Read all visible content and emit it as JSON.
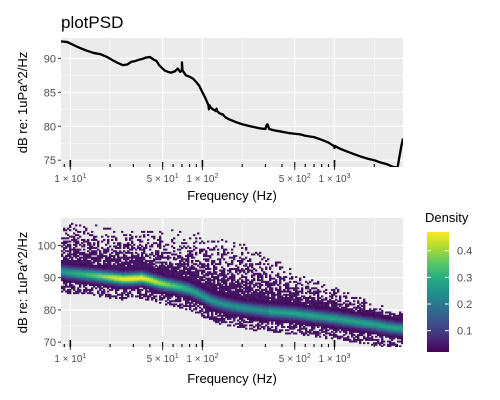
{
  "chart_data": [
    {
      "type": "line",
      "title": "plotPSD",
      "xlabel": "Frequency (Hz)",
      "ylabel": "dB re: 1uPa^2/Hz",
      "x_scale": "log10",
      "xlim": [
        8.5,
        3300
      ],
      "ylim": [
        74,
        93
      ],
      "x_ticks": [
        10,
        50,
        100,
        500,
        1000
      ],
      "x_tick_labels": [
        {
          "base": "1 × 10",
          "exp": "1"
        },
        {
          "base": "5 × 10",
          "exp": "1"
        },
        {
          "base": "1 × 10",
          "exp": "2"
        },
        {
          "base": "5 × 10",
          "exp": "2"
        },
        {
          "base": "1 × 10",
          "exp": "3"
        }
      ],
      "y_ticks": [
        75,
        80,
        85,
        90
      ],
      "grid": true,
      "series": [
        {
          "color": "#000000",
          "x": [
            8.5,
            9.5,
            11,
            13,
            15,
            17,
            19,
            21,
            23,
            25,
            27,
            29,
            31,
            33,
            35,
            37,
            40,
            43,
            45,
            47,
            50,
            52,
            55,
            58,
            62,
            65,
            68,
            70,
            72,
            75,
            80,
            85,
            90,
            95,
            100,
            105,
            110,
            115,
            120,
            125,
            130,
            135,
            140,
            145,
            150,
            160,
            170,
            180,
            200,
            230,
            270,
            300,
            310,
            320,
            350,
            400,
            450,
            500,
            550,
            600,
            700,
            800,
            900,
            950,
            1000,
            1050,
            1100,
            1200,
            1400,
            1600,
            1800,
            2000,
            2200,
            2500,
            2800,
            3000,
            3100,
            3200,
            3300
          ],
          "y": [
            92.5,
            92.4,
            91.8,
            91.2,
            90.8,
            90.6,
            90.2,
            89.7,
            89.3,
            89.0,
            89.1,
            89.5,
            89.6,
            89.8,
            89.9,
            90.1,
            90.2,
            89.8,
            89.6,
            89.0,
            88.5,
            88.2,
            88.0,
            87.9,
            88.1,
            88.5,
            88.0,
            88.2,
            88.0,
            87.5,
            87.3,
            87.0,
            86.5,
            85.9,
            85.0,
            84.2,
            83.3,
            82.8,
            82.5,
            82.3,
            82.2,
            81.9,
            81.8,
            81.6,
            81.3,
            81.0,
            80.8,
            80.6,
            80.3,
            80.0,
            79.7,
            79.6,
            80.2,
            79.6,
            79.4,
            79.2,
            79.0,
            78.9,
            78.8,
            78.6,
            78.4,
            78.0,
            77.6,
            77.3,
            77.1,
            76.9,
            76.7,
            76.4,
            75.9,
            75.5,
            75.2,
            75.0,
            74.7,
            74.4,
            74.0,
            73.9,
            75.5,
            77.0,
            78.2
          ]
        }
      ],
      "spikes": [
        {
          "x": 70,
          "peak": 89.4
        },
        {
          "x": 112,
          "peak": 82.5
        },
        {
          "x": 128,
          "peak": 82.6
        },
        {
          "x": 142,
          "peak": 81.8
        },
        {
          "x": 310,
          "peak": 80.3
        },
        {
          "x": 1000,
          "peak": 76.8
        }
      ]
    },
    {
      "type": "heatmap",
      "xlabel": "Frequency (Hz)",
      "ylabel": "dB re: 1uPa^2/Hz",
      "x_scale": "log10",
      "xlim": [
        8.5,
        3300
      ],
      "ylim": [
        68.5,
        108.5
      ],
      "x_ticks": [
        10,
        50,
        100,
        500,
        1000
      ],
      "x_tick_labels": [
        {
          "base": "1 × 10",
          "exp": "1"
        },
        {
          "base": "5 × 10",
          "exp": "1"
        },
        {
          "base": "1 × 10",
          "exp": "2"
        },
        {
          "base": "5 × 10",
          "exp": "2"
        },
        {
          "base": "1 × 10",
          "exp": "3"
        }
      ],
      "y_ticks": [
        70,
        80,
        90,
        100
      ],
      "grid": true,
      "legend": {
        "title": "Density",
        "position": "right",
        "range": [
          0.02,
          0.47
        ],
        "ticks": [
          0.1,
          0.2,
          0.3,
          0.4
        ],
        "colormap": "viridis"
      },
      "ridge": {
        "x": [
          8.5,
          10,
          15,
          20,
          25,
          30,
          35,
          40,
          50,
          60,
          70,
          80,
          100,
          120,
          150,
          200,
          300,
          500,
          700,
          1000,
          1500,
          2000,
          2500,
          3300
        ],
        "y": [
          92.0,
          91.6,
          90.8,
          90.2,
          89.7,
          89.8,
          90.0,
          89.4,
          88.2,
          87.6,
          87.0,
          86.4,
          84.5,
          82.8,
          81.7,
          80.7,
          79.7,
          79.0,
          78.2,
          77.4,
          76.3,
          75.6,
          74.8,
          74.2
        ]
      },
      "upper_envelope": {
        "x": [
          8.5,
          20,
          50,
          100,
          200,
          300,
          500,
          1000,
          2000,
          3300
        ],
        "y": [
          107,
          106,
          105,
          104,
          101,
          97,
          93,
          87,
          82,
          80
        ]
      },
      "peak_density_hz": 30
    }
  ]
}
